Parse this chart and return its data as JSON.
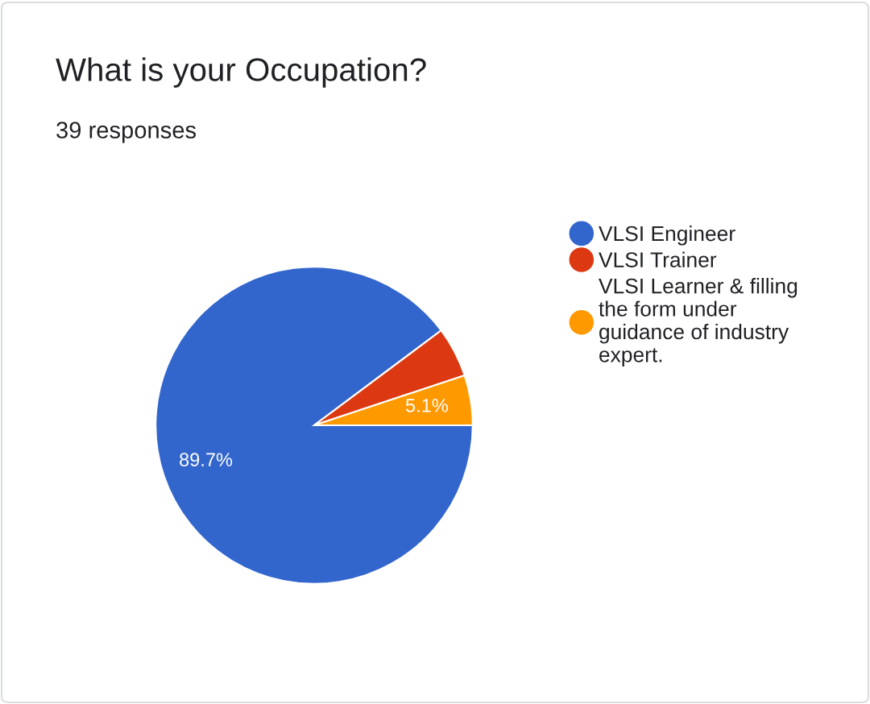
{
  "chart_data": {
    "type": "pie",
    "title": "What is your Occupation?",
    "subtitle": "39 responses",
    "categories": [
      "VLSI Engineer",
      "VLSI Trainer",
      "VLSI Learner & filling the form under guidance of industry expert."
    ],
    "values": [
      89.7,
      5.1,
      5.1
    ],
    "colors": [
      "#3366cc",
      "#dc3912",
      "#ff9900"
    ],
    "value_labels": [
      "89.7%",
      null,
      "5.1%"
    ],
    "legend": "right"
  }
}
